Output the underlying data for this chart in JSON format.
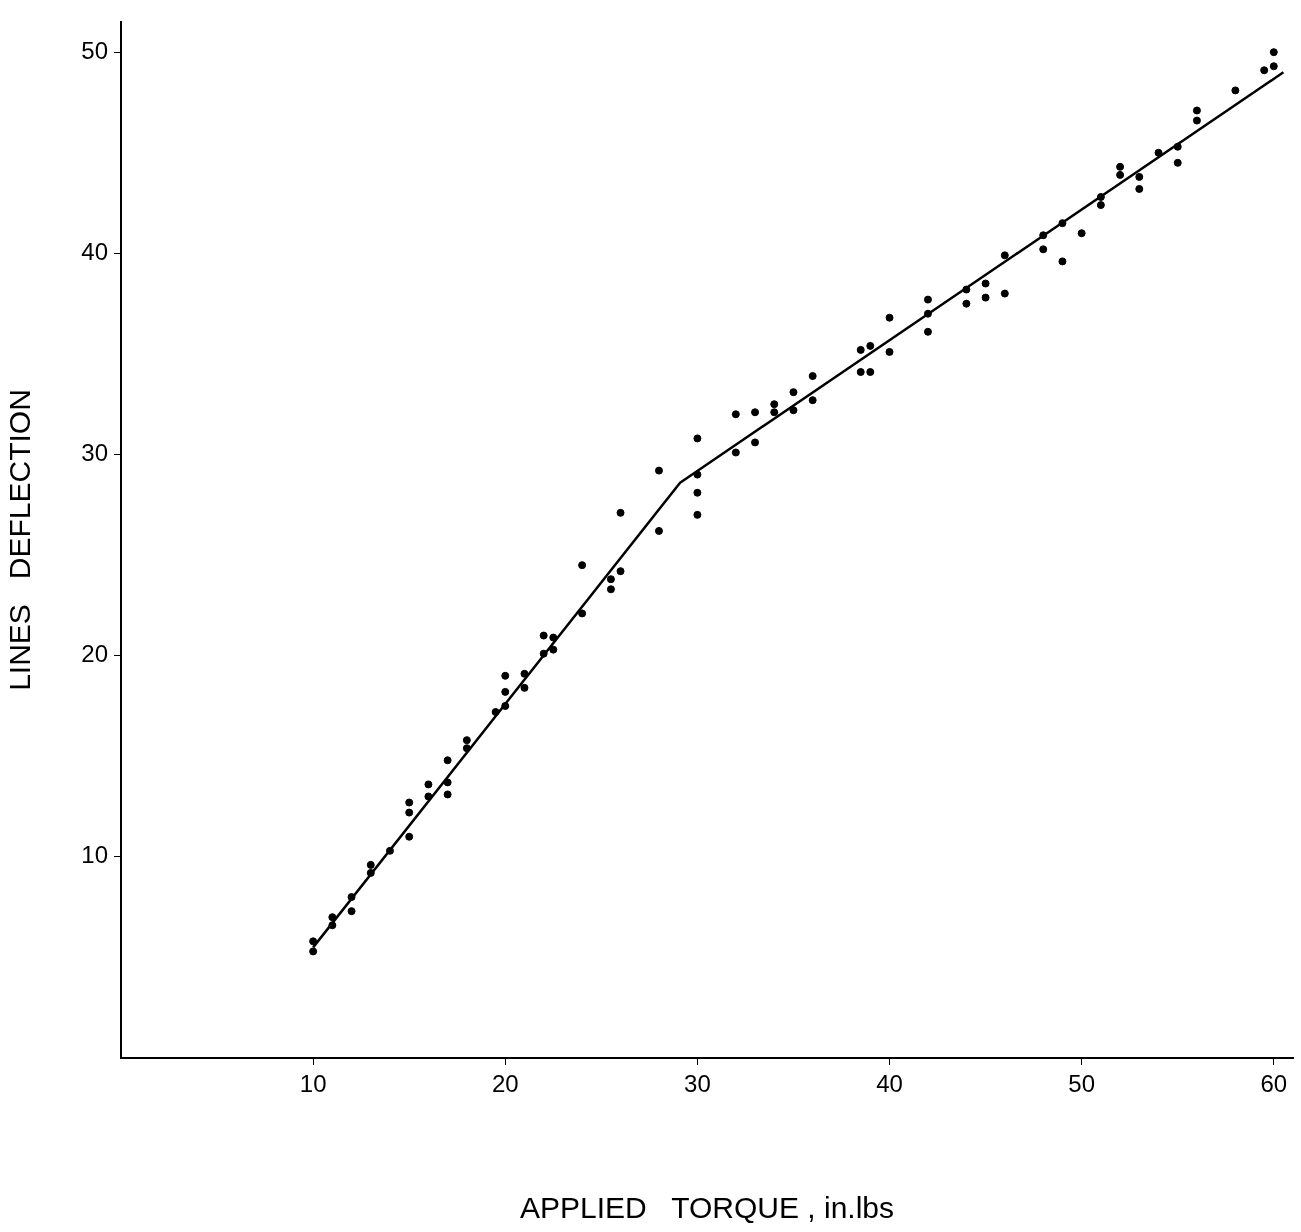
{
  "chart_data": {
    "type": "scatter",
    "xlabel": "APPLIED   TORQUE , in.lbs",
    "ylabel": "LINES   DEFLECTION",
    "xlim": [
      0,
      61
    ],
    "ylim": [
      0,
      51.5
    ],
    "xticks": [
      10,
      20,
      30,
      40,
      50,
      60
    ],
    "yticks": [
      10,
      20,
      30,
      40,
      50
    ],
    "grid": false,
    "legend": false,
    "series": [
      {
        "marker": "circle",
        "color": "#000000",
        "x": [
          10,
          10,
          11,
          11,
          12,
          12,
          13,
          13,
          14,
          15,
          15,
          15,
          16,
          16,
          17,
          17,
          17,
          18,
          18,
          19.5,
          20,
          20,
          20,
          21,
          21,
          22,
          22,
          22.5,
          22.5,
          24,
          24,
          25.5,
          25.5,
          26,
          26,
          28,
          28,
          30,
          30,
          30,
          30,
          32,
          32,
          33,
          33,
          34,
          34,
          35,
          35,
          36,
          36,
          38.5,
          38.5,
          39,
          39,
          40,
          40,
          42,
          42,
          42,
          44,
          44,
          45,
          45,
          46,
          46,
          48,
          48,
          49,
          49,
          50,
          51,
          51,
          52,
          52,
          53,
          53,
          54,
          55,
          55,
          56,
          56,
          58,
          59.5,
          60,
          60
        ],
        "values": [
          5.3,
          5.8,
          6.6,
          7.0,
          7.3,
          8.0,
          9.2,
          9.6,
          10.3,
          11.0,
          12.2,
          12.7,
          13.0,
          13.6,
          13.1,
          13.7,
          14.8,
          15.4,
          15.8,
          17.2,
          17.5,
          18.2,
          19.0,
          18.4,
          19.1,
          20.1,
          21.0,
          20.3,
          20.9,
          22.1,
          24.5,
          23.3,
          23.8,
          24.2,
          27.1,
          26.2,
          29.2,
          27.0,
          28.1,
          29.0,
          30.8,
          30.1,
          32.0,
          30.6,
          32.1,
          32.1,
          32.5,
          32.2,
          33.1,
          32.7,
          33.9,
          34.1,
          35.2,
          34.1,
          35.4,
          35.1,
          36.8,
          36.1,
          37.0,
          37.7,
          37.5,
          38.2,
          37.8,
          38.5,
          38.0,
          39.9,
          40.2,
          40.9,
          39.6,
          41.5,
          41.0,
          42.4,
          42.8,
          43.9,
          44.3,
          43.2,
          43.8,
          45.0,
          44.5,
          45.3,
          46.6,
          47.1,
          48.1,
          49.1,
          49.3,
          50.0
        ]
      },
      {
        "type": "line",
        "marker": "none",
        "line_style": "solid",
        "color": "#000000",
        "x": [
          10,
          29.1,
          60.5
        ],
        "values": [
          5.5,
          28.6,
          49.0
        ]
      }
    ]
  }
}
